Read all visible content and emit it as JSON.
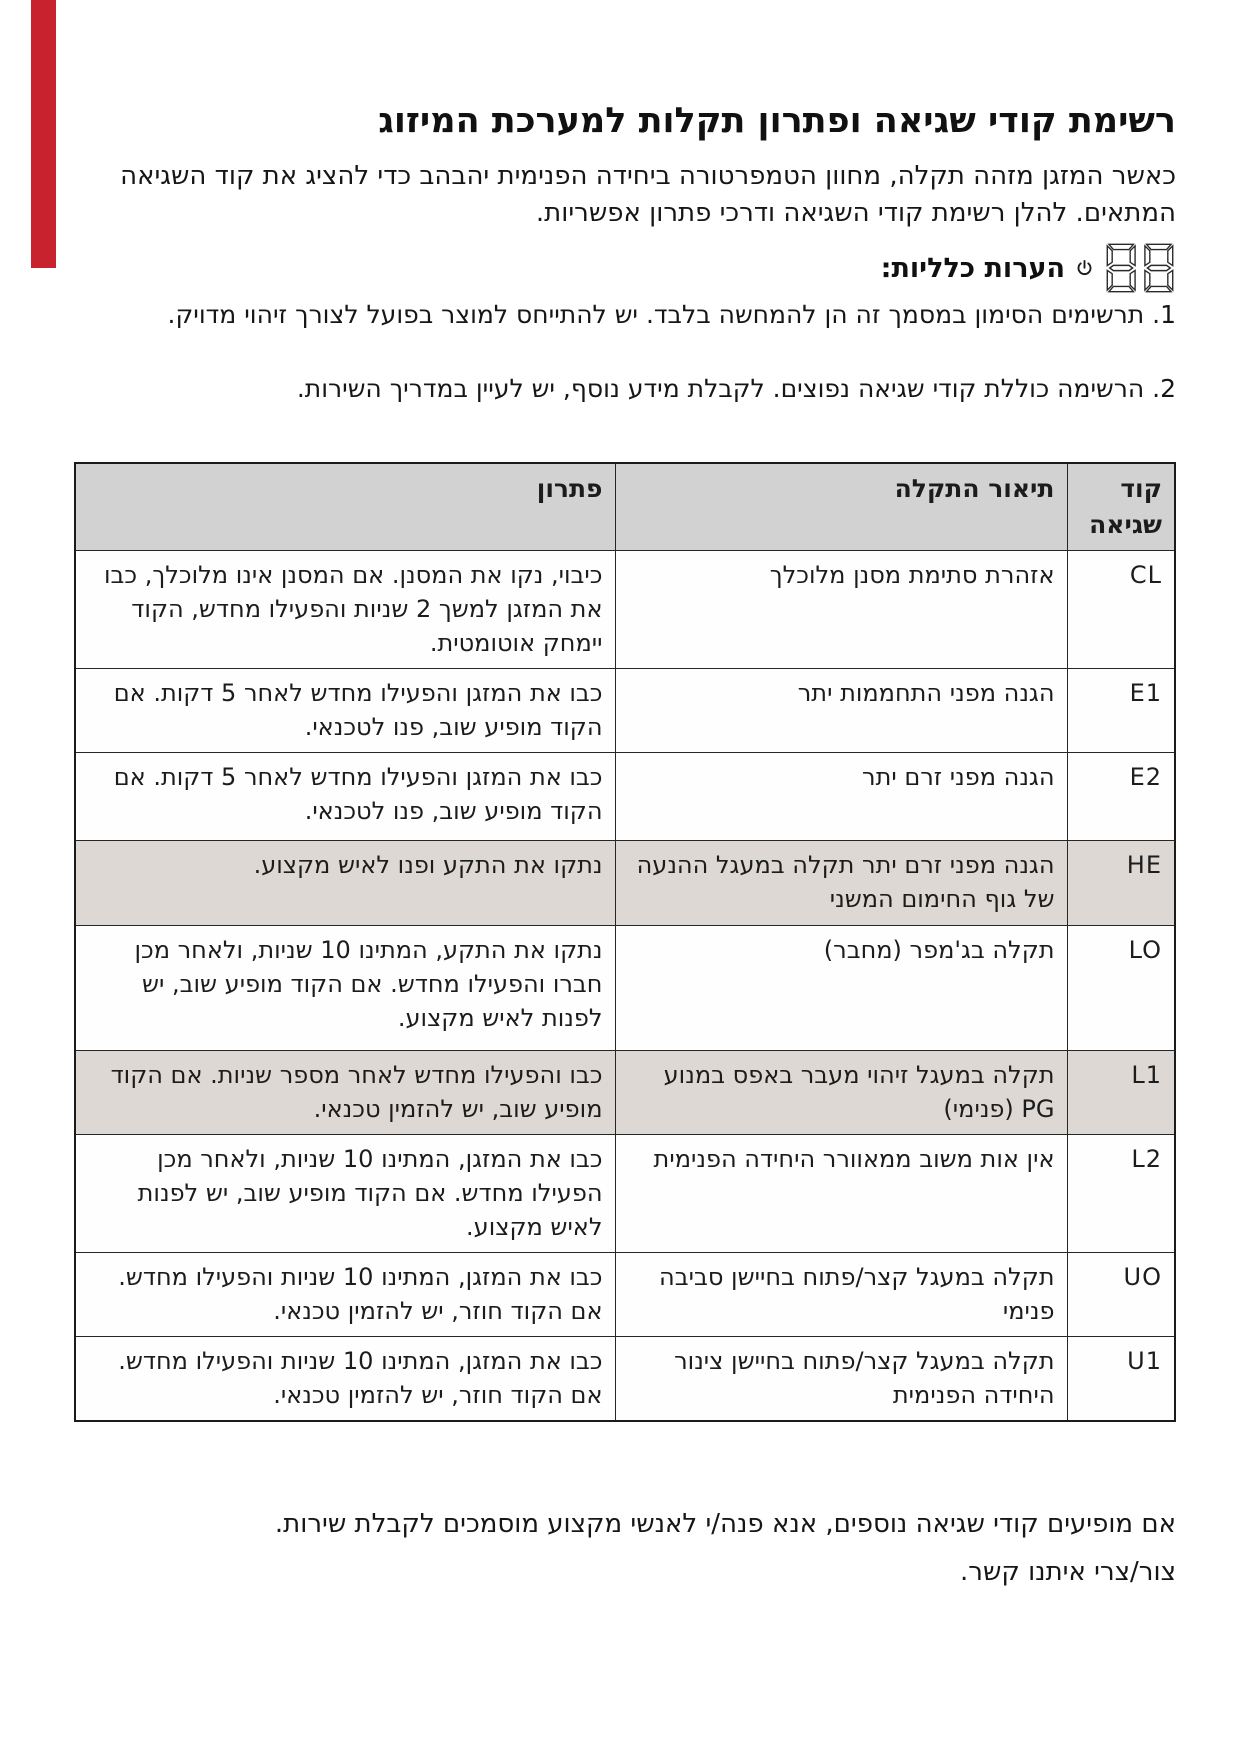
{
  "page": {
    "title": "רשימת קודי שגיאה ופתרון תקלות למערכת המיזוג",
    "intro": "כאשר המזגן מזהה תקלה, מחוון הטמפרטורה ביחידה הפנימית יהבהב כדי להציג את קוד השגיאה המתאים. להלן רשימת קודי השגיאה ודרכי פתרון אפשריות.",
    "notes_heading": "הערות כלליות:",
    "notes": [
      "1. תרשימים הסימון במסמך זה הן להמחשה בלבד. יש להתייחס למוצר בפועל לצורך זיהוי מדויק.",
      "2. הרשימה כוללת קודי שגיאה נפוצים. לקבלת מידע נוסף, יש לעיין במדריך השירות."
    ],
    "footer_line1": "אם מופיעים קודי שגיאה נוספים, אנא פנה/י לאנשי מקצוע מוסמכים לקבלת שירות.",
    "footer_line2": "צור/צרי איתנו קשר."
  },
  "icons": {
    "display": "seven-segment-88",
    "power": "power-symbol"
  },
  "table": {
    "headers": {
      "code": "קוד שגיאה",
      "description": "תיאור התקלה",
      "solution": "פתרון"
    },
    "rows": [
      {
        "code": "CL",
        "description": "אזהרת סתימת מסנן מלוכלך",
        "solution": "כיבוי, נקו את המסנן. אם המסנן אינו מלוכלך, כבו את המזגן למשך 2 שניות והפעילו מחדש, הקוד יימחק אוטומטית.",
        "shaded": false
      },
      {
        "code": "E1",
        "description": "הגנה מפני התחממות יתר",
        "solution": "כבו את המזגן והפעילו מחדש לאחר 5 דקות. אם הקוד מופיע שוב, פנו לטכנאי.",
        "shaded": false
      },
      {
        "code": "E2",
        "description": "הגנה מפני זרם יתר",
        "solution": "כבו את המזגן והפעילו מחדש לאחר 5 דקות. אם הקוד מופיע שוב, פנו לטכנאי.",
        "shaded": false
      },
      {
        "code": "HE",
        "description": "הגנה מפני זרם יתר תקלה במעגל ההנעה של גוף החימום המשני",
        "solution": "נתקו את התקע ופנו לאיש מקצוע.",
        "shaded": true
      },
      {
        "code": "LO",
        "description": "תקלה בג'מפר (מחבר)",
        "solution": "נתקו את התקע, המתינו 10 שניות, ולאחר מכן חברו והפעילו מחדש. אם הקוד מופיע שוב, יש לפנות לאיש מקצוע.",
        "shaded": false
      },
      {
        "code": "L1",
        "description": "תקלה במעגל זיהוי מעבר באפס במנוע PG (פנימי)",
        "solution": "כבו והפעילו מחדש לאחר מספר שניות. אם הקוד מופיע שוב, יש להזמין טכנאי.",
        "shaded": true
      },
      {
        "code": "L2",
        "description": "אין אות משוב ממאוורר היחידה הפנימית",
        "solution": "כבו את המזגן, המתינו 10 שניות, ולאחר מכן הפעילו מחדש. אם הקוד מופיע שוב, יש לפנות לאיש מקצוע.",
        "shaded": false
      },
      {
        "code": "UO",
        "description": "תקלה במעגל קצר/פתוח בחיישן סביבה פנימי",
        "solution": "כבו את המזגן, המתינו 10 שניות והפעילו מחדש. אם הקוד חוזר, יש להזמין טכנאי.",
        "shaded": false
      },
      {
        "code": "U1",
        "description": "תקלה במעגל קצר/פתוח בחיישן צינור היחידה הפנימית",
        "solution": "כבו את המזגן, המתינו 10 שניות והפעילו מחדש. אם הקוד חוזר, יש להזמין טכנאי.",
        "shaded": false
      }
    ]
  },
  "colors": {
    "accent_red": "#c8222e",
    "header_bg": "#d2d2d2",
    "shaded_row_bg": "#ddd8d4",
    "text": "#1c1c1c"
  }
}
